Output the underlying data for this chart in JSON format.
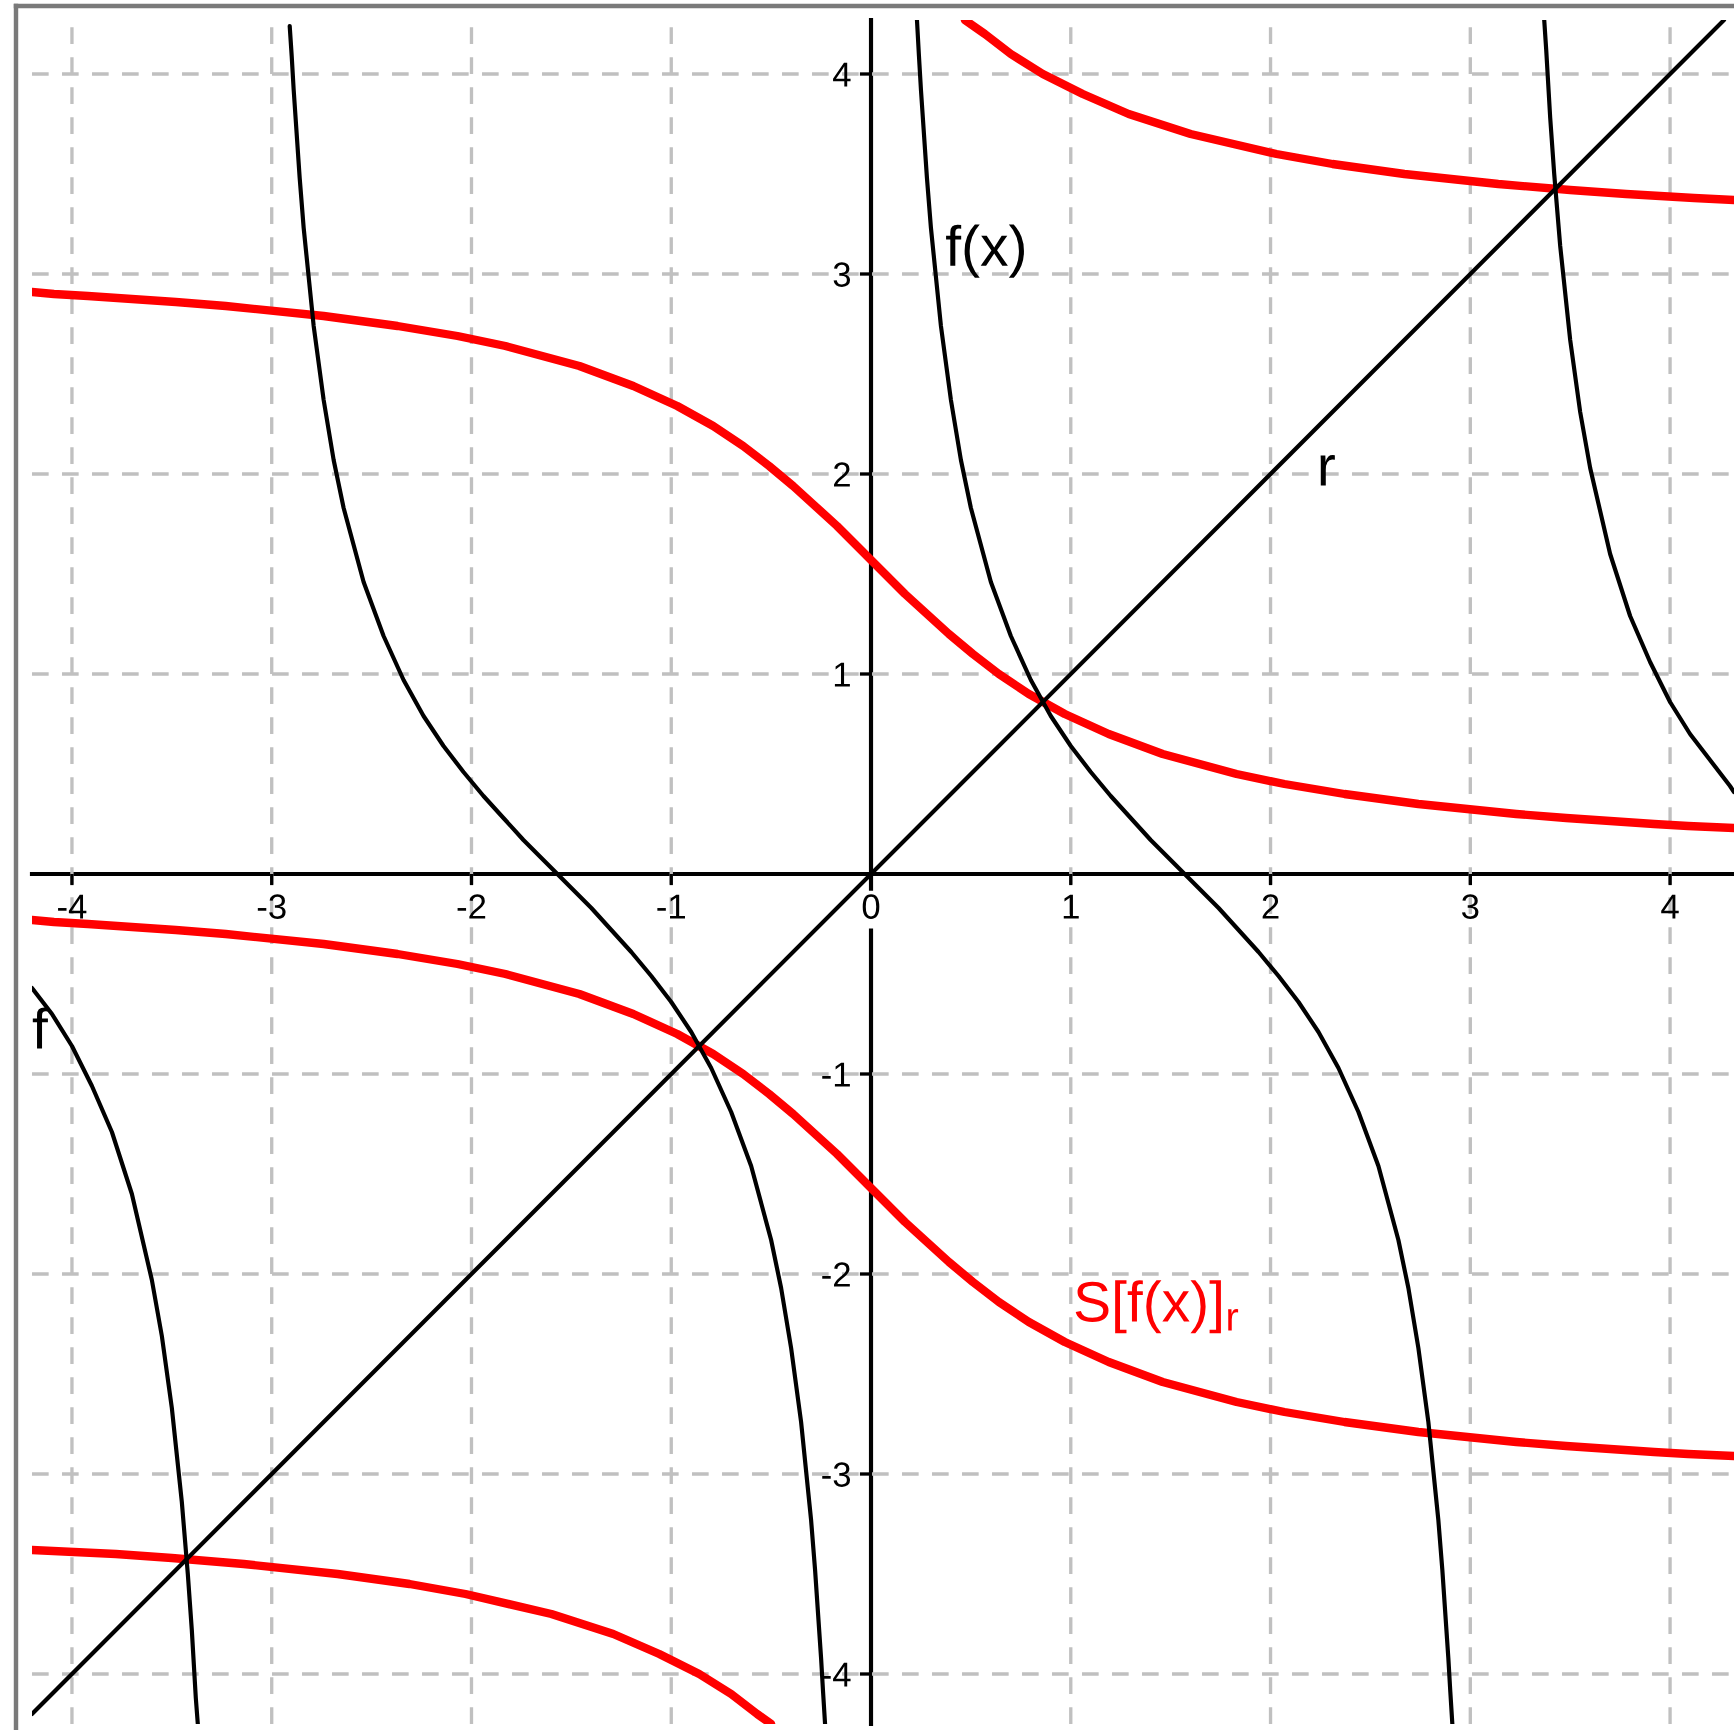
{
  "chart_data": {
    "type": "line",
    "xlim": [
      -4.2,
      4.32
    ],
    "ylim": [
      -4.25,
      4.27
    ],
    "xticks": [
      -4,
      -3,
      -2,
      -1,
      0,
      1,
      2,
      3,
      4
    ],
    "yticks": [
      -4,
      -3,
      -2,
      -1,
      {
        "value": 0,
        "label": null
      },
      1,
      2,
      3,
      4
    ],
    "grid": true,
    "series": [
      {
        "color": "#000000",
        "x": [
          -4.2,
          -4.1,
          -4.0,
          -3.9,
          -3.8,
          -3.7,
          -3.6,
          -3.55,
          -3.5,
          -3.45,
          -3.42,
          -3.4,
          -3.38,
          -3.37
        ],
        "values": [
          -0.57,
          -0.7,
          -0.86,
          -1.06,
          -1.29,
          -1.6,
          -2.03,
          -2.31,
          -2.67,
          -3.14,
          -3.5,
          -3.78,
          -4.12,
          -4.25
        ]
      },
      {
        "color": "#000000",
        "x": [
          -2.91,
          -2.9,
          -2.89,
          -2.86,
          -2.84,
          -2.79,
          -2.74,
          -2.69,
          -2.64,
          -2.54,
          -2.44,
          -2.34,
          -2.24,
          -2.14,
          -2.04,
          -1.94,
          -1.84,
          -1.74,
          -1.64,
          -1.57,
          -1.5,
          -1.4,
          -1.3,
          -1.2,
          -1.1,
          -1.0,
          -0.9,
          -0.8,
          -0.7,
          -0.6,
          -0.5,
          -0.45,
          -0.4,
          -0.35,
          -0.3,
          -0.28,
          -0.25,
          -0.24,
          -0.23
        ],
        "values": [
          4.24,
          4.09,
          3.92,
          3.48,
          3.23,
          2.74,
          2.37,
          2.07,
          1.83,
          1.46,
          1.19,
          0.97,
          0.79,
          0.64,
          0.51,
          0.39,
          0.28,
          0.17,
          0.07,
          0,
          -0.07,
          -0.17,
          -0.28,
          -0.39,
          -0.51,
          -0.64,
          -0.79,
          -0.97,
          -1.19,
          -1.46,
          -1.83,
          -2.07,
          -2.37,
          -2.74,
          -3.23,
          -3.48,
          -3.92,
          -4.09,
          -4.25
        ]
      },
      {
        "color": "#000000",
        "x": [
          0.23,
          0.24,
          0.25,
          0.28,
          0.3,
          0.35,
          0.4,
          0.45,
          0.5,
          0.6,
          0.7,
          0.8,
          0.9,
          1.0,
          1.1,
          1.2,
          1.3,
          1.4,
          1.5,
          1.57,
          1.64,
          1.74,
          1.84,
          1.94,
          2.04,
          2.14,
          2.24,
          2.34,
          2.44,
          2.54,
          2.64,
          2.69,
          2.74,
          2.79,
          2.84,
          2.86,
          2.89,
          2.9,
          2.91
        ],
        "values": [
          4.27,
          4.09,
          3.92,
          3.48,
          3.23,
          2.74,
          2.37,
          2.07,
          1.83,
          1.46,
          1.19,
          0.97,
          0.79,
          0.64,
          0.51,
          0.39,
          0.28,
          0.17,
          0.07,
          0,
          -0.07,
          -0.17,
          -0.28,
          -0.39,
          -0.51,
          -0.64,
          -0.79,
          -0.97,
          -1.19,
          -1.46,
          -1.83,
          -2.07,
          -2.37,
          -2.74,
          -3.23,
          -3.48,
          -3.92,
          -4.09,
          -4.25
        ]
      },
      {
        "color": "#000000",
        "x": [
          3.37,
          3.38,
          3.4,
          3.42,
          3.45,
          3.5,
          3.55,
          3.6,
          3.7,
          3.8,
          3.9,
          4.0,
          4.1,
          4.2,
          4.3,
          4.32
        ],
        "values": [
          4.27,
          4.12,
          3.78,
          3.5,
          3.14,
          2.67,
          2.31,
          2.03,
          1.6,
          1.29,
          1.06,
          0.86,
          0.7,
          0.57,
          0.44,
          0.41
        ]
      },
      {
        "color": "#000000",
        "x": [
          -4.2,
          4.27
        ],
        "values": [
          -4.2,
          4.27
        ]
      },
      {
        "color": "#ff0000",
        "x": [
          -4.2,
          -4.09,
          -3.92,
          -3.48,
          -3.23,
          -2.74,
          -2.37,
          -2.07,
          -1.83,
          -1.46,
          -1.19,
          -0.97,
          -0.79,
          -0.64,
          -0.51,
          -0.39,
          -0.28,
          -0.17,
          -0.07,
          0,
          0.07,
          0.17,
          0.28,
          0.39,
          0.51,
          0.64,
          0.79,
          0.97,
          1.19,
          1.46,
          1.83,
          2.07,
          2.37,
          2.74,
          3.23,
          3.48,
          3.92,
          4.09,
          4.32
        ],
        "values": [
          2.91,
          2.9,
          2.89,
          2.86,
          2.84,
          2.79,
          2.74,
          2.69,
          2.64,
          2.54,
          2.44,
          2.34,
          2.24,
          2.14,
          2.04,
          1.94,
          1.84,
          1.74,
          1.64,
          1.57,
          1.5,
          1.4,
          1.3,
          1.2,
          1.1,
          1.0,
          0.9,
          0.8,
          0.7,
          0.6,
          0.5,
          0.45,
          0.4,
          0.35,
          0.3,
          0.28,
          0.25,
          0.24,
          0.23
        ]
      },
      {
        "color": "#ff0000",
        "x": [
          -4.2,
          -4.09,
          -3.92,
          -3.48,
          -3.23,
          -2.74,
          -2.37,
          -2.07,
          -1.83,
          -1.46,
          -1.19,
          -0.97,
          -0.79,
          -0.64,
          -0.51,
          -0.39,
          -0.28,
          -0.17,
          -0.07,
          0,
          0.07,
          0.17,
          0.28,
          0.39,
          0.51,
          0.64,
          0.79,
          0.97,
          1.19,
          1.46,
          1.83,
          2.07,
          2.37,
          2.74,
          3.23,
          3.48,
          3.92,
          4.09,
          4.32
        ],
        "values": [
          -0.23,
          -0.24,
          -0.25,
          -0.28,
          -0.3,
          -0.35,
          -0.4,
          -0.45,
          -0.5,
          -0.6,
          -0.7,
          -0.8,
          -0.9,
          -1.0,
          -1.1,
          -1.2,
          -1.3,
          -1.4,
          -1.5,
          -1.57,
          -1.64,
          -1.74,
          -1.84,
          -1.94,
          -2.04,
          -2.14,
          -2.24,
          -2.34,
          -2.44,
          -2.54,
          -2.64,
          -2.69,
          -2.74,
          -2.79,
          -2.84,
          -2.86,
          -2.89,
          -2.9,
          -2.91
        ]
      },
      {
        "color": "#ff0000",
        "x": [
          0.47,
          0.57,
          0.7,
          0.86,
          1.06,
          1.29,
          1.6,
          2.03,
          2.31,
          2.67,
          3.14,
          3.5,
          3.78,
          4.12,
          4.32
        ],
        "values": [
          4.27,
          4.2,
          4.1,
          4.0,
          3.9,
          3.8,
          3.7,
          3.6,
          3.55,
          3.5,
          3.45,
          3.42,
          3.4,
          3.38,
          3.37
        ]
      },
      {
        "color": "#ff0000",
        "x": [
          -4.2,
          -3.78,
          -3.5,
          -3.14,
          -2.67,
          -2.31,
          -2.03,
          -1.6,
          -1.29,
          -1.06,
          -0.86,
          -0.7,
          -0.57,
          -0.5
        ],
        "values": [
          -3.38,
          -3.4,
          -3.42,
          -3.45,
          -3.5,
          -3.55,
          -3.6,
          -3.7,
          -3.8,
          -3.9,
          -4.0,
          -4.1,
          -4.2,
          -4.25
        ]
      }
    ],
    "annotations": [
      "f",
      {
        "text": "f(x)",
        "x": 0.33,
        "y": 2.94
      },
      {
        "text": "r",
        "x": 2.19,
        "y": 2.19
      },
      {
        "text": "S[f(x)]$_{r}$",
        "x": 0.97,
        "y": -2.34
      }
    ]
  }
}
